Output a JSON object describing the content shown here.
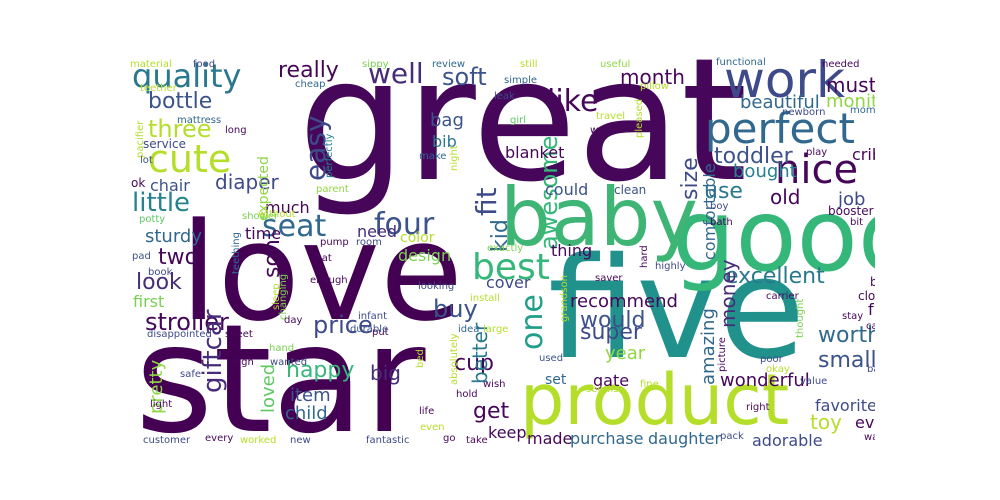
{
  "words": [
    {
      "text": "great",
      "color": "#46075a"
    },
    {
      "text": "star",
      "color": "#440154"
    },
    {
      "text": "love",
      "color": "#440154"
    },
    {
      "text": "five",
      "color": "#21918c"
    },
    {
      "text": "good",
      "color": "#35b779"
    },
    {
      "text": "baby",
      "color": "#3eb575"
    },
    {
      "text": "product",
      "color": "#b5de2b"
    },
    {
      "text": "work",
      "color": "#3e4a89"
    },
    {
      "text": "perfect",
      "color": "#31688e"
    },
    {
      "text": "nice",
      "color": "#46075a"
    },
    {
      "text": "cute",
      "color": "#b5de2b"
    },
    {
      "text": "quality",
      "color": "#2a788e"
    },
    {
      "text": "best",
      "color": "#35b779"
    },
    {
      "text": "one",
      "color": "#1f9e89"
    },
    {
      "text": "four",
      "color": "#3b528b"
    },
    {
      "text": "seat",
      "color": "#31688e"
    },
    {
      "text": "easy",
      "color": "#3e4a89"
    },
    {
      "text": "like",
      "color": "#46075a"
    },
    {
      "text": "well",
      "color": "#472c7a"
    },
    {
      "text": "soft",
      "color": "#3b528b"
    },
    {
      "text": "really",
      "color": "#46075a"
    },
    {
      "text": "awesome",
      "color": "#35b779"
    },
    {
      "text": "fit",
      "color": "#3e4a89"
    },
    {
      "text": "kid",
      "color": "#31688e"
    },
    {
      "text": "little",
      "color": "#26828e"
    },
    {
      "text": "diaper",
      "color": "#3e4a89"
    },
    {
      "text": "three",
      "color": "#b5de2b"
    },
    {
      "text": "bottle",
      "color": "#3b528b"
    },
    {
      "text": "bag",
      "color": "#3b528b"
    },
    {
      "text": "bib",
      "color": "#2a788e"
    },
    {
      "text": "toddler",
      "color": "#3b528b"
    },
    {
      "text": "month",
      "color": "#46075a"
    },
    {
      "text": "must",
      "color": "#46075a"
    },
    {
      "text": "monitor",
      "color": "#90d743"
    },
    {
      "text": "beautiful",
      "color": "#31688e"
    },
    {
      "text": "size",
      "color": "#3e4a89"
    },
    {
      "text": "use",
      "color": "#2a788e"
    },
    {
      "text": "old",
      "color": "#46075a"
    },
    {
      "text": "job",
      "color": "#3e4a89"
    },
    {
      "text": "crib",
      "color": "#46075a"
    },
    {
      "text": "bought",
      "color": "#26828e"
    },
    {
      "text": "blanket",
      "color": "#46075a"
    },
    {
      "text": "excellent",
      "color": "#2a788e"
    },
    {
      "text": "stroller",
      "color": "#46075a"
    },
    {
      "text": "price",
      "color": "#3e4a89"
    },
    {
      "text": "buy",
      "color": "#3b528b"
    },
    {
      "text": "look",
      "color": "#472c7a"
    },
    {
      "text": "two",
      "color": "#46075a"
    },
    {
      "text": "son",
      "color": "#46075a"
    },
    {
      "text": "time",
      "color": "#46075a"
    },
    {
      "text": "sturdy",
      "color": "#31688e"
    },
    {
      "text": "chair",
      "color": "#3b528b"
    },
    {
      "text": "much",
      "color": "#46075a"
    },
    {
      "text": "first",
      "color": "#7ad151"
    },
    {
      "text": "giftcar",
      "color": "#472c7a"
    },
    {
      "text": "happy",
      "color": "#35b779"
    },
    {
      "text": "item",
      "color": "#3b528b"
    },
    {
      "text": "child",
      "color": "#31688e"
    },
    {
      "text": "loved",
      "color": "#5ec962"
    },
    {
      "text": "pretty",
      "color": "#90d743"
    },
    {
      "text": "big",
      "color": "#472c7a"
    },
    {
      "text": "cup",
      "color": "#46075a"
    },
    {
      "text": "better",
      "color": "#2a788e"
    },
    {
      "text": "get",
      "color": "#46075a"
    },
    {
      "text": "keep",
      "color": "#46075a"
    },
    {
      "text": "made",
      "color": "#46075a"
    },
    {
      "text": "purchase",
      "color": "#31688e"
    },
    {
      "text": "daughter",
      "color": "#31688e"
    },
    {
      "text": "adorable",
      "color": "#3e4a89"
    },
    {
      "text": "would",
      "color": "#3b528b"
    },
    {
      "text": "super",
      "color": "#3e4a89"
    },
    {
      "text": "money",
      "color": "#472c7a"
    },
    {
      "text": "amazing",
      "color": "#31688e"
    },
    {
      "text": "year",
      "color": "#90d743"
    },
    {
      "text": "worth",
      "color": "#31688e"
    },
    {
      "text": "small",
      "color": "#3b528b"
    },
    {
      "text": "favorite",
      "color": "#3e4a89"
    },
    {
      "text": "toy",
      "color": "#b5de2b"
    },
    {
      "text": "wonderful",
      "color": "#46075a"
    },
    {
      "text": "fun",
      "color": "#46075a"
    },
    {
      "text": "ever",
      "color": "#46075a"
    },
    {
      "text": "recommend",
      "color": "#46075a"
    },
    {
      "text": "cover",
      "color": "#3e4a89"
    },
    {
      "text": "design",
      "color": "#7ad151"
    },
    {
      "text": "color",
      "color": "#b5de2b"
    },
    {
      "text": "could",
      "color": "#3b528b"
    },
    {
      "text": "thing",
      "color": "#46075a"
    },
    {
      "text": "need",
      "color": "#472c7a"
    },
    {
      "text": "gate",
      "color": "#46075a"
    },
    {
      "text": "set",
      "color": "#31688e"
    },
    {
      "text": "comfortable",
      "color": "#31688e"
    },
    {
      "text": "expected",
      "color": "#90d743"
    },
    {
      "text": "material",
      "color": "#b5de2b"
    },
    {
      "text": "food",
      "color": "#3e4a89"
    },
    {
      "text": "sippy",
      "color": "#7ad151"
    },
    {
      "text": "review",
      "color": "#31688e"
    },
    {
      "text": "still",
      "color": "#b5de2b"
    },
    {
      "text": "useful",
      "color": "#90d743"
    },
    {
      "text": "far",
      "color": "#46075a"
    },
    {
      "text": "functional",
      "color": "#31688e"
    },
    {
      "text": "needed",
      "color": "#46075a"
    },
    {
      "text": "piece",
      "color": "#46075a"
    },
    {
      "text": "teether",
      "color": "#b5de2b"
    },
    {
      "text": "cheap",
      "color": "#31688e"
    },
    {
      "text": "simple",
      "color": "#31688e"
    },
    {
      "text": "pillow",
      "color": "#b5de2b"
    },
    {
      "text": "mom",
      "color": "#31688e"
    },
    {
      "text": "newborn",
      "color": "#3e4a89"
    },
    {
      "text": "pacifier",
      "color": "#b5de2b"
    },
    {
      "text": "mattress",
      "color": "#31688e"
    },
    {
      "text": "leak",
      "color": "#3e4a89"
    },
    {
      "text": "girl",
      "color": "#5ec962"
    },
    {
      "text": "travel",
      "color": "#b5de2b"
    },
    {
      "text": "pleased",
      "color": "#b5de2b"
    },
    {
      "text": "long",
      "color": "#46075a"
    },
    {
      "text": "waste",
      "color": "#46075a"
    },
    {
      "text": "service",
      "color": "#3e4a89"
    },
    {
      "text": "lot",
      "color": "#3b528b"
    },
    {
      "text": "perfectly",
      "color": "#26828e"
    },
    {
      "text": "make",
      "color": "#31688e"
    },
    {
      "text": "night",
      "color": "#b5de2b"
    },
    {
      "text": "play",
      "color": "#46075a"
    },
    {
      "text": "ok",
      "color": "#46075a"
    },
    {
      "text": "parent",
      "color": "#90d743"
    },
    {
      "text": "clean",
      "color": "#3b528b"
    },
    {
      "text": "boy",
      "color": "#3e4a89"
    },
    {
      "text": "booster",
      "color": "#46075a"
    },
    {
      "text": "potty",
      "color": "#5ec962"
    },
    {
      "text": "shower",
      "color": "#7ad151"
    },
    {
      "text": "without",
      "color": "#b5de2b"
    },
    {
      "text": "bath",
      "color": "#46075a"
    },
    {
      "text": "bit",
      "color": "#46075a"
    },
    {
      "text": "pump",
      "color": "#46075a"
    },
    {
      "text": "room",
      "color": "#3e4a89"
    },
    {
      "text": "convenient",
      "color": "#b5de2b"
    },
    {
      "text": "exactly",
      "color": "#7ad151"
    },
    {
      "text": "hard",
      "color": "#46075a"
    },
    {
      "text": "pad",
      "color": "#3b528b"
    },
    {
      "text": "teething",
      "color": "#31688e"
    },
    {
      "text": "mat",
      "color": "#46075a"
    },
    {
      "text": "highly",
      "color": "#3e4a89"
    },
    {
      "text": "book",
      "color": "#3e4a89"
    },
    {
      "text": "sleep",
      "color": "#b5de2b"
    },
    {
      "text": "enough",
      "color": "#46075a"
    },
    {
      "text": "saver",
      "color": "#46075a"
    },
    {
      "text": "bad",
      "color": "#46075a"
    },
    {
      "text": "carrier",
      "color": "#46075a"
    },
    {
      "text": "cloth",
      "color": "#46075a"
    },
    {
      "text": "changing",
      "color": "#7ad151"
    },
    {
      "text": "looking",
      "color": "#3e4a89"
    },
    {
      "text": "install",
      "color": "#b5de2b"
    },
    {
      "text": "put",
      "color": "#46075a"
    },
    {
      "text": "infant",
      "color": "#3e4a89"
    },
    {
      "text": "disappointed",
      "color": "#3e4a89"
    },
    {
      "text": "sheet",
      "color": "#46075a"
    },
    {
      "text": "day",
      "color": "#46075a"
    },
    {
      "text": "durable",
      "color": "#3b528b"
    },
    {
      "text": "idea",
      "color": "#31688e"
    },
    {
      "text": "large",
      "color": "#b5de2b"
    },
    {
      "text": "grandson",
      "color": "#b5de2b"
    },
    {
      "text": "thought",
      "color": "#7ad151"
    },
    {
      "text": "stay",
      "color": "#46075a"
    },
    {
      "text": "ca",
      "color": "#46075a"
    },
    {
      "text": "hand",
      "color": "#7ad151"
    },
    {
      "text": "high",
      "color": "#46075a"
    },
    {
      "text": "bed",
      "color": "#b5de2b"
    },
    {
      "text": "absolutely",
      "color": "#b5de2b"
    },
    {
      "text": "used",
      "color": "#3b528b"
    },
    {
      "text": "seems",
      "color": "#b5de2b"
    },
    {
      "text": "picture",
      "color": "#46075a"
    },
    {
      "text": "poor",
      "color": "#3e4a89"
    },
    {
      "text": "okay",
      "color": "#b5de2b"
    },
    {
      "text": "back",
      "color": "#3e4a89"
    },
    {
      "text": "safe",
      "color": "#3e4a89"
    },
    {
      "text": "wanted",
      "color": "#3e4a89"
    },
    {
      "text": "light",
      "color": "#46075a"
    },
    {
      "text": "wish",
      "color": "#46075a"
    },
    {
      "text": "hold",
      "color": "#46075a"
    },
    {
      "text": "fine",
      "color": "#b5de2b"
    },
    {
      "text": "right",
      "color": "#46075a"
    },
    {
      "text": "value",
      "color": "#3e4a89"
    },
    {
      "text": "life",
      "color": "#46075a"
    },
    {
      "text": "even",
      "color": "#b5de2b"
    },
    {
      "text": "customer",
      "color": "#3e4a89"
    },
    {
      "text": "every",
      "color": "#46075a"
    },
    {
      "text": "worked",
      "color": "#b5de2b"
    },
    {
      "text": "new",
      "color": "#3e4a89"
    },
    {
      "text": "fantastic",
      "color": "#3e4a89"
    },
    {
      "text": "go",
      "color": "#46075a"
    },
    {
      "text": "take",
      "color": "#46075a"
    },
    {
      "text": "pack",
      "color": "#3e4a89"
    },
    {
      "text": "way",
      "color": "#46075a"
    }
  ]
}
